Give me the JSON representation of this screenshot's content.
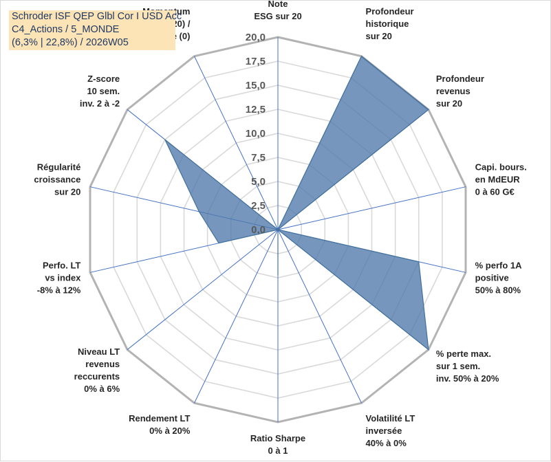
{
  "title_lines": [
    "Schroder ISF QEP Glbl Cor I USD Acc",
    "C4_Actions / 5_MONDE",
    "(6,3% | 22,8%) / 2026W05"
  ],
  "chart_data": {
    "type": "radar",
    "rmax": 20,
    "ticks": [
      "0,0",
      "2,5",
      "5,0",
      "7,5",
      "10,0",
      "12,5",
      "15,0",
      "17,5",
      "20,0"
    ],
    "grid": true,
    "axes": [
      {
        "label": [
          "Note",
          "ESG sur 20"
        ]
      },
      {
        "label": [
          "Profondeur",
          "historique",
          "sur 20"
        ]
      },
      {
        "label": [
          "Profondeur",
          "revenus",
          "sur 20"
        ]
      },
      {
        "label": [
          "Capi. bours.",
          "en MdEUR",
          "0 à 60 G€"
        ]
      },
      {
        "label": [
          "% perfo 1A",
          "positive",
          "50% à 80%"
        ]
      },
      {
        "label": [
          "% perte max.",
          "sur 1 sem.",
          "inv. 50% à 20%"
        ]
      },
      {
        "label": [
          "Volatilité LT",
          "inversée",
          "40% à 0%"
        ]
      },
      {
        "label": [
          "Ratio Sharpe",
          "0 à 1"
        ]
      },
      {
        "label": [
          "Rendement LT",
          "0% à 20%"
        ]
      },
      {
        "label": [
          "Niveau LT",
          "revenus",
          "reccurents",
          "0% à 6%"
        ]
      },
      {
        "label": [
          "Perfo. LT",
          "vs index",
          "-8% à 12%"
        ]
      },
      {
        "label": [
          "Régularité",
          "croissance",
          "sur 20"
        ]
      },
      {
        "label": [
          "Z-score",
          "10 sem.",
          "inv. 2 à -2"
        ]
      },
      {
        "label": [
          "Momentum",
          "Achat (20) /",
          "Vente (0)"
        ]
      }
    ],
    "series": [
      {
        "values": [
          0,
          20,
          20,
          0,
          15,
          20,
          0,
          4.7,
          0,
          0,
          6.3,
          8.4,
          15,
          0
        ]
      }
    ],
    "colors": {
      "fill": "#4f78ab",
      "stroke": "#41719c",
      "grid": "#bfbfbf",
      "title_bg": "#fce4b6"
    }
  }
}
